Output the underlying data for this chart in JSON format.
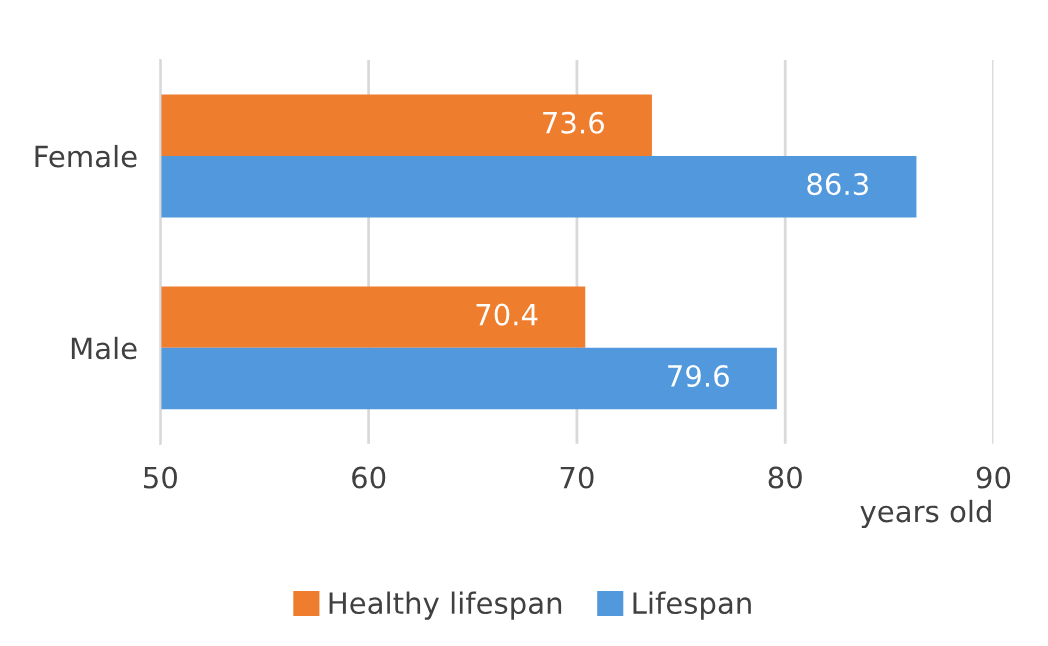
{
  "chart_data": {
    "type": "bar",
    "orientation": "horizontal",
    "categories": [
      "Female",
      "Male"
    ],
    "series": [
      {
        "name": "Healthy lifespan",
        "color": "#ef7d2e",
        "values": [
          73.6,
          70.4
        ]
      },
      {
        "name": "Lifespan",
        "color": "#5198dc",
        "values": [
          86.3,
          79.6
        ]
      }
    ],
    "xlim": [
      50,
      90
    ],
    "xticks": [
      50,
      60,
      70,
      80,
      90
    ],
    "xlabel": "years old",
    "grid": "x",
    "legend": "bottom",
    "data_labels": true
  }
}
